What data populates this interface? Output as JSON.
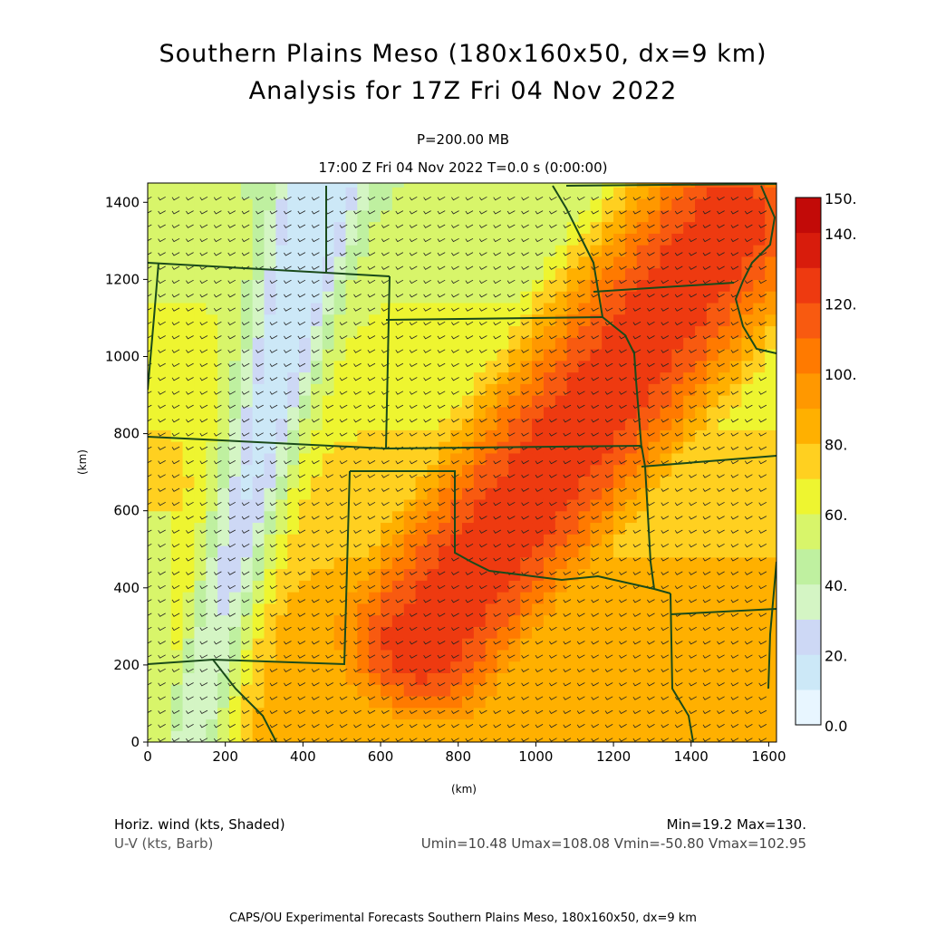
{
  "header": {
    "title_line1": "Southern Plains Meso (180x160x50, dx=9 km)",
    "title_line2": "Analysis for 17Z Fri 04 Nov 2022",
    "level": "P=200.00 MB",
    "valid_time": "17:00 Z Fri 04 Nov 2022    T=0.0 s (0:00:00)"
  },
  "footer": {
    "field_shaded": "Horiz. wind (kts, Shaded)",
    "field_barb": "U-V (kts, Barb)",
    "minmax": "Min=19.2 Max=130.",
    "uv_stats": "Umin=10.48 Umax=108.08 Vmin=-50.80 Vmax=102.95",
    "credit": "CAPS/OU Experimental Forecasts  Southern Plains Meso, 180x160x50, dx=9 km"
  },
  "chart_data": {
    "type": "heatmap",
    "title": "Southern Plains Meso (180x160x50, dx=9 km)",
    "xlabel": "(km)",
    "ylabel": "(km)",
    "xlim": [
      0,
      1620
    ],
    "ylim": [
      0,
      1450
    ],
    "x_ticks": [
      "0",
      "200",
      "400",
      "600",
      "800",
      "1000",
      "1200",
      "1400",
      "1600"
    ],
    "y_ticks": [
      "0",
      "200",
      "400",
      "600",
      "800",
      "1000",
      "1200",
      "1400"
    ],
    "colorbar": {
      "labels": [
        "0.0",
        "20.",
        "40.",
        "60.",
        "80.",
        "100.",
        "120.",
        "140.",
        "150."
      ],
      "levels": [
        0,
        10,
        20,
        30,
        40,
        50,
        60,
        70,
        80,
        90,
        100,
        110,
        120,
        130,
        140,
        150
      ],
      "colors": [
        "#e8f6ff",
        "#cce8f7",
        "#cdd8f5",
        "#d4f5c4",
        "#bff0a0",
        "#d8f56a",
        "#eef530",
        "#ffd020",
        "#ffb000",
        "#ff9800",
        "#ff7a00",
        "#f85a10",
        "#ee3a10",
        "#d81c0c",
        "#c20a08"
      ]
    },
    "stats": {
      "min": 19.2,
      "max": 130,
      "umin": 10.48,
      "umax": 108.08,
      "vmin": -50.8,
      "vmax": 102.95
    },
    "field_description": "Jet-stream wind speed maximum oriented SW-NE from about (700,250) to (1500,1350) km with speeds near 110-130 kts; minimum of 20-30 kts along a NNE strip from about (250,600) to (450,1450) km",
    "colors": {
      "map_lines": "#1a4a1a",
      "barbs": "#222222"
    }
  }
}
